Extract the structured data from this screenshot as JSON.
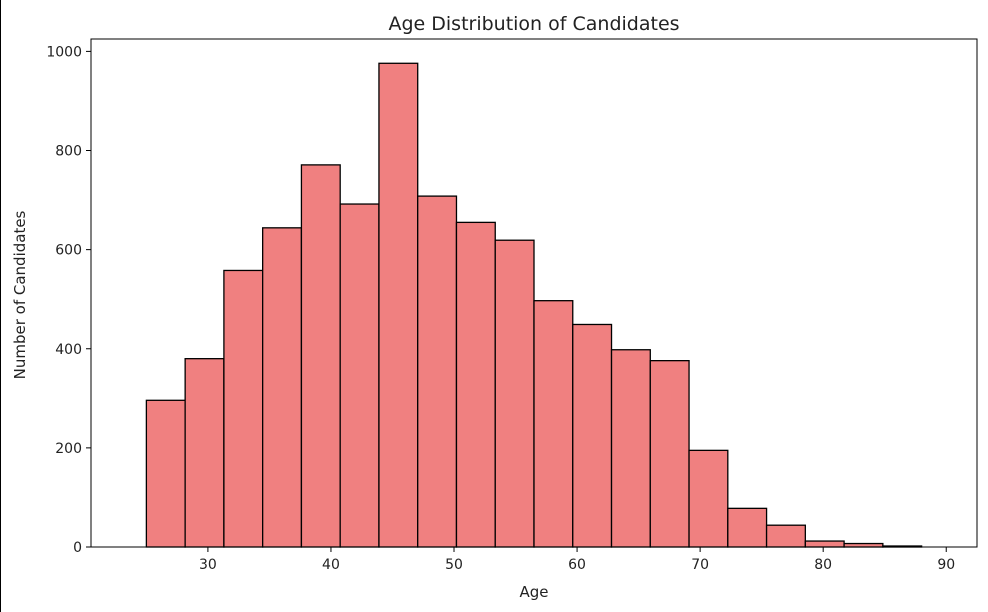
{
  "chart_data": {
    "type": "bar",
    "title": "Age Distribution of Candidates",
    "xlabel": "Age",
    "ylabel": "Number of Candidates",
    "bin_edges": [
      25.0,
      28.15,
      31.3,
      34.45,
      37.6,
      40.75,
      43.9,
      47.05,
      50.2,
      53.35,
      56.5,
      59.65,
      62.8,
      65.95,
      69.1,
      72.25,
      75.4,
      78.55,
      81.7,
      84.85,
      88.0
    ],
    "values": [
      296,
      380,
      558,
      644,
      771,
      692,
      976,
      708,
      655,
      619,
      497,
      449,
      398,
      376,
      195,
      78,
      44,
      12,
      7,
      2
    ],
    "xlim": [
      20.5,
      92.5
    ],
    "ylim": [
      0,
      1025
    ],
    "xticks": [
      30,
      40,
      50,
      60,
      70,
      80,
      90
    ],
    "yticks": [
      0,
      200,
      400,
      600,
      800,
      1000
    ],
    "bar_color": "#f08080",
    "edge_color": "#000000",
    "grid": false
  }
}
